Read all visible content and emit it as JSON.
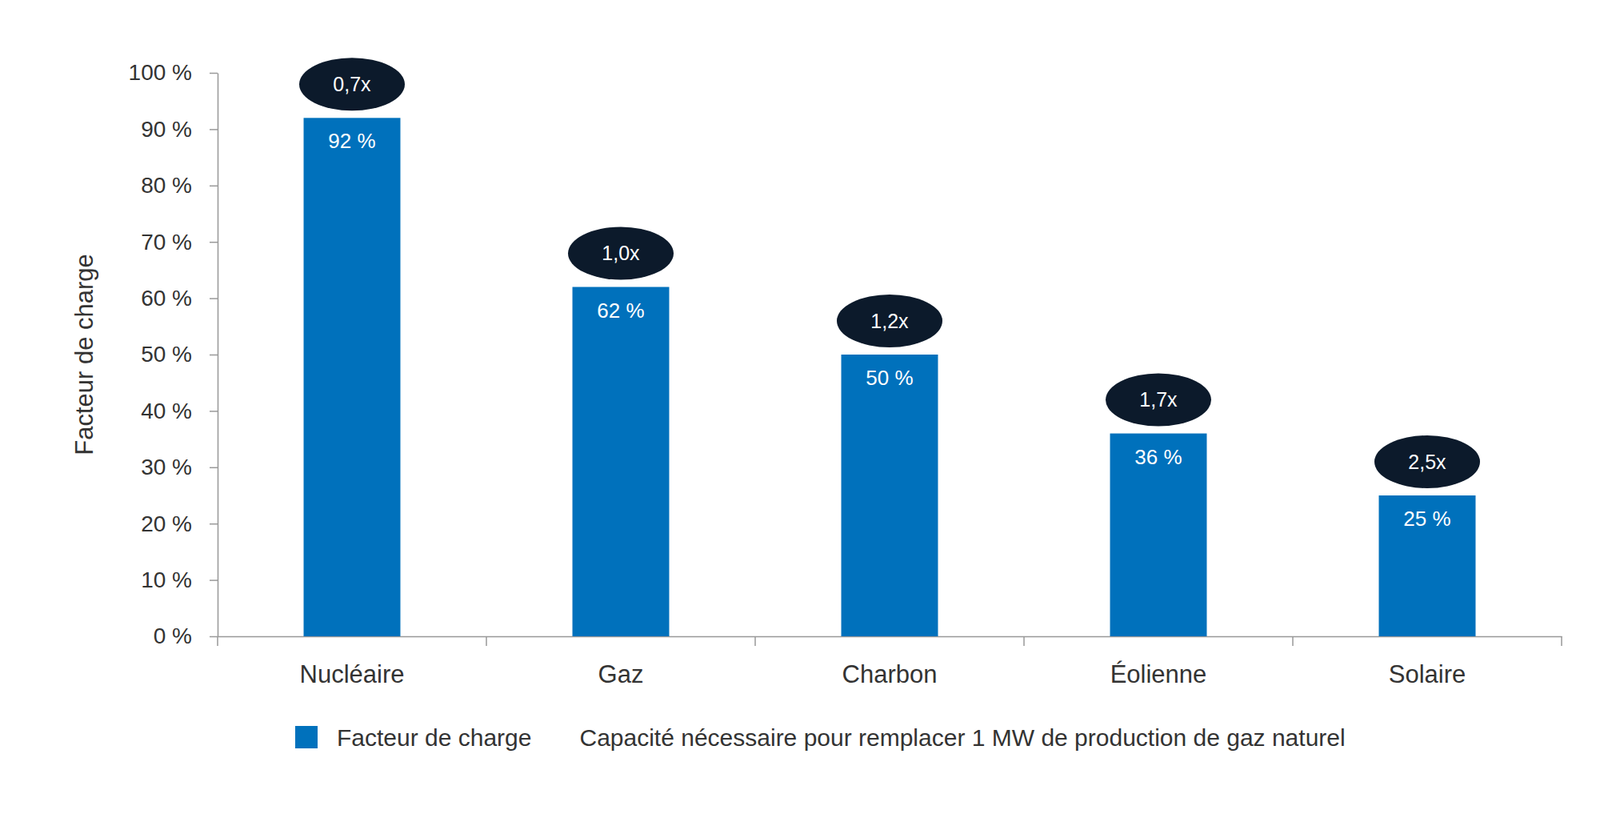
{
  "chart_data": {
    "type": "bar",
    "y_label": "Facteur de charge",
    "categories": [
      "Nucléaire",
      "Gaz",
      "Charbon",
      "Éolienne",
      "Solaire"
    ],
    "series": [
      {
        "name": "Facteur de charge",
        "color": "#0071bc",
        "values": [
          92,
          62,
          50,
          36,
          25
        ],
        "value_labels": [
          "92 %",
          "62 %",
          "50 %",
          "36 %",
          "25 %"
        ]
      },
      {
        "name": "Capacité nécessaire pour remplacer 1 MW de production de gaz naturel",
        "type": "annotation",
        "color": "#0c1a2b",
        "values": [
          0.7,
          1.0,
          1.2,
          1.7,
          2.5
        ],
        "value_labels": [
          "0,7x",
          "1,0x",
          "1,2x",
          "1,7x",
          "2,5x"
        ]
      }
    ],
    "ylim": [
      0,
      100
    ],
    "yticks": [
      {
        "value": 0,
        "label": "0 %"
      },
      {
        "value": 10,
        "label": "10 %"
      },
      {
        "value": 20,
        "label": "20 %"
      },
      {
        "value": 30,
        "label": "30 %"
      },
      {
        "value": 40,
        "label": "40 %"
      },
      {
        "value": 50,
        "label": "50 %"
      },
      {
        "value": 60,
        "label": "60 %"
      },
      {
        "value": 70,
        "label": "70 %"
      },
      {
        "value": 80,
        "label": "80 %"
      },
      {
        "value": 90,
        "label": "90 %"
      },
      {
        "value": 100,
        "label": "100 %"
      }
    ],
    "data_labels": true,
    "legend": "bottom"
  }
}
